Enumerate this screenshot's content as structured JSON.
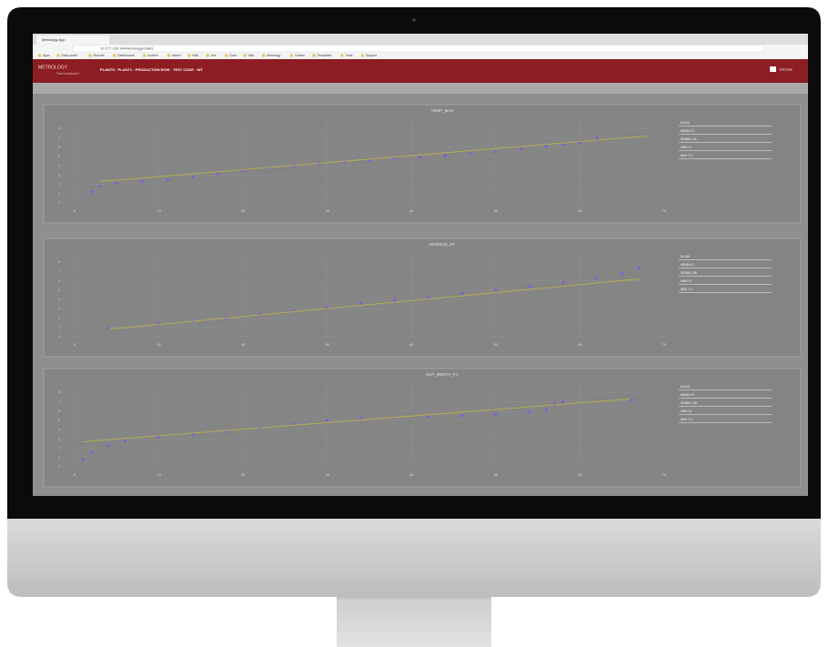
{
  "browser": {
    "tab": "Metrology App",
    "address": "10.177.100.144/metrology/charts",
    "bookmarks": [
      "Apps",
      "Data portal",
      "Reports",
      "Dashboards",
      "Archive",
      "Admin",
      "Wiki",
      "Jira",
      "Docs",
      "Wiki",
      "Metrology",
      "Guides",
      "Templates",
      "Tools",
      "Support"
    ]
  },
  "app": {
    "brand": "METROLOGY",
    "subtitle": "Test Dashboard",
    "breadcrumb": "PLANTS · PLANT1 · PRODUCTION ROW · TEST CODE · NIT",
    "user": "John Doe"
  },
  "chart_data": [
    {
      "type": "scatter",
      "title": "TEMP_MAX",
      "xlim": [
        0,
        70
      ],
      "ylim": [
        0,
        9
      ],
      "xticks": [
        0,
        10,
        20,
        30,
        40,
        50,
        60,
        70
      ],
      "yticks": [
        0,
        1,
        2,
        3,
        4,
        5,
        6,
        7,
        8
      ],
      "grid": true,
      "series": [
        {
          "color": "#7a5fe0",
          "x": [
            2,
            3,
            5,
            8,
            11,
            14,
            17,
            20,
            23,
            26,
            29,
            32,
            35,
            38,
            41,
            44,
            47,
            50,
            53,
            56,
            58,
            60,
            62
          ],
          "values": [
            1.2,
            1.8,
            2.1,
            2.3,
            2.5,
            2.8,
            3.1,
            3.5,
            3.8,
            4.0,
            4.2,
            4.4,
            4.6,
            4.8,
            4.9,
            5.1,
            5.3,
            5.5,
            5.8,
            6.1,
            6.3,
            6.5,
            7.0
          ]
        },
        {
          "color": "#b8b24a",
          "line": true,
          "x": [
            3,
            68
          ],
          "values": [
            2.3,
            7.2
          ]
        }
      ],
      "stats": [
        "N=240",
        "MEAN 4.3",
        "SIGMA 1.21",
        "MIN 1.2",
        "MAX 7.0"
      ]
    },
    {
      "type": "scatter",
      "title": "MAGNUS_ST",
      "xlim": [
        0,
        70
      ],
      "ylim": [
        0,
        9
      ],
      "xticks": [
        0,
        10,
        20,
        30,
        40,
        50,
        60,
        70
      ],
      "yticks": [
        0,
        1,
        2,
        3,
        4,
        5,
        6,
        7,
        8
      ],
      "grid": true,
      "series": [
        {
          "color": "#7a5fe0",
          "x": [
            4,
            10,
            14,
            18,
            22,
            26,
            30,
            34,
            38,
            42,
            46,
            50,
            54,
            58,
            62,
            65,
            67
          ],
          "values": [
            0.9,
            1.4,
            1.7,
            2.0,
            2.4,
            2.8,
            3.2,
            3.6,
            3.9,
            4.2,
            4.6,
            5.0,
            5.4,
            5.8,
            6.3,
            6.8,
            7.4
          ]
        },
        {
          "color": "#b8b24a",
          "line": true,
          "x": [
            4,
            67
          ],
          "values": [
            0.8,
            6.2
          ]
        }
      ],
      "stats": [
        "N=180",
        "MEAN 4.1",
        "SIGMA 1.86",
        "MIN 0.9",
        "MAX 7.4"
      ]
    },
    {
      "type": "scatter",
      "title": "NUT_WIDTH_T-1",
      "xlim": [
        0,
        70
      ],
      "ylim": [
        0,
        9
      ],
      "xticks": [
        0,
        10,
        20,
        30,
        40,
        50,
        60,
        70
      ],
      "yticks": [
        0,
        1,
        2,
        3,
        4,
        5,
        6,
        7,
        8
      ],
      "grid": true,
      "series": [
        {
          "color": "#7a5fe0",
          "x": [
            1,
            2,
            4,
            6,
            10,
            14,
            18,
            22,
            26,
            30,
            34,
            38,
            42,
            46,
            50,
            54,
            56,
            57,
            58,
            66
          ],
          "values": [
            0.8,
            1.5,
            2.3,
            2.8,
            3.2,
            3.5,
            3.8,
            4.2,
            4.6,
            5.0,
            5.2,
            5.3,
            5.4,
            5.5,
            5.6,
            5.9,
            6.1,
            6.8,
            7.0,
            7.2
          ]
        },
        {
          "color": "#b8b24a",
          "line": true,
          "x": [
            1,
            66
          ],
          "values": [
            2.7,
            7.3
          ]
        }
      ],
      "stats": [
        "N=210",
        "MEAN 4.9",
        "SIGMA 1.55",
        "MIN 0.8",
        "MAX 7.2"
      ]
    }
  ]
}
